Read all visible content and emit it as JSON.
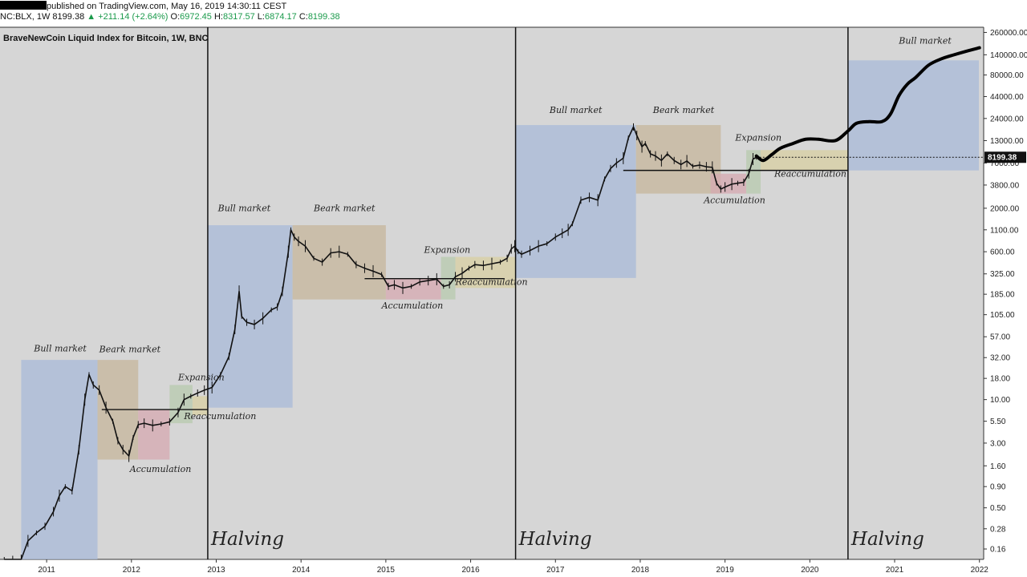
{
  "header": {
    "line1_text": "published on TradingView.com, May 16, 2019 14:30:11 CEST",
    "symbol": "NC:BLX, 1W",
    "price": "8199.38",
    "change": "+211.14 (+2.64%)",
    "open_label": "O:",
    "open": "6972.45",
    "high_label": "H:",
    "high": "8317.57",
    "low_label": "L:",
    "low": "6874.17",
    "close_label": "C:",
    "close": "8199.38"
  },
  "chart_data": {
    "type": "line",
    "title": "BraveNewCoin Liquid Index for Bitcoin, 1W, BNC",
    "y_scale": "log",
    "ylim": [
      0.12,
      300000
    ],
    "xlim": [
      2010.45,
      2022.05
    ],
    "grid": false,
    "y_ticks": [
      "260000.00",
      "140000.00",
      "80000.00",
      "44000.00",
      "24000.00",
      "13000.00",
      "7000.00",
      "3800.00",
      "2000.00",
      "1100.00",
      "600.00",
      "325.00",
      "185.00",
      "105.00",
      "57.00",
      "32.00",
      "18.00",
      "10.00",
      "5.50",
      "3.00",
      "1.60",
      "0.90",
      "0.50",
      "0.28",
      "0.16"
    ],
    "y_tick_values": [
      260000,
      140000,
      80000,
      44000,
      24000,
      13000,
      7000,
      3800,
      2000,
      1100,
      600,
      325,
      185,
      105,
      57,
      32,
      18,
      10,
      5.5,
      3,
      1.6,
      0.9,
      0.5,
      0.28,
      0.16
    ],
    "x_ticks": [
      "2011",
      "2012",
      "2013",
      "2014",
      "2015",
      "2016",
      "2017",
      "2018",
      "2019",
      "2020",
      "2021",
      "2022"
    ],
    "x_tick_values": [
      2011,
      2012,
      2013,
      2014,
      2015,
      2016,
      2017,
      2018,
      2019,
      2020,
      2021,
      2022
    ],
    "current_price_label": "8199.38",
    "current_price": 8199.38,
    "halvings": [
      {
        "x": 2012.9,
        "label": "Halving"
      },
      {
        "x": 2016.53,
        "label": "Halving"
      },
      {
        "x": 2020.45,
        "label": "Halving"
      }
    ],
    "phases": [
      {
        "name": "Bull market",
        "x0": 2010.7,
        "x1": 2011.6,
        "y0": 0.12,
        "y1": 30,
        "color": "#aabbd8",
        "label_x": 2010.85,
        "label_y": 38
      },
      {
        "name": "Bear market",
        "label": "Beark market",
        "x0": 2011.6,
        "x1": 2012.08,
        "y0": 1.9,
        "y1": 30,
        "color": "#c7b79e",
        "label_x": 2011.62,
        "label_y": 37
      },
      {
        "name": "Accumulation",
        "x0": 2012.08,
        "x1": 2012.45,
        "y0": 1.9,
        "y1": 7.6,
        "color": "#d6aab2",
        "label_x": 2011.98,
        "label_y": 1.35
      },
      {
        "name": "Expansion",
        "x0": 2012.45,
        "x1": 2012.72,
        "y0": 5.2,
        "y1": 15,
        "color": "#b9cbb0",
        "label_x": 2012.55,
        "label_y": 17
      },
      {
        "name": "Reaccumulation",
        "x0": 2012.72,
        "x1": 2012.9,
        "y0": 6.5,
        "y1": 11,
        "color": "#d8cfa4",
        "label_x": 2012.62,
        "label_y": 5.8
      },
      {
        "name": "Bull market",
        "x0": 2012.9,
        "x1": 2013.9,
        "y0": 8,
        "y1": 1250,
        "color": "#aabbd8",
        "label_x": 2013.02,
        "label_y": 1850
      },
      {
        "name": "Bear market",
        "label": "Beark market",
        "x0": 2013.9,
        "x1": 2015.0,
        "y0": 160,
        "y1": 1250,
        "color": "#c7b79e",
        "label_x": 2014.15,
        "label_y": 1850
      },
      {
        "name": "Accumulation",
        "x0": 2015.0,
        "x1": 2015.65,
        "y0": 160,
        "y1": 285,
        "color": "#d6aab2",
        "label_x": 2014.95,
        "label_y": 125
      },
      {
        "name": "Expansion",
        "x0": 2015.65,
        "x1": 2015.82,
        "y0": 160,
        "y1": 520,
        "color": "#b9cbb0",
        "label_x": 2015.45,
        "label_y": 580
      },
      {
        "name": "Reaccumulation",
        "x0": 2015.82,
        "x1": 2016.53,
        "y0": 220,
        "y1": 520,
        "color": "#d8cfa4",
        "label_x": 2015.82,
        "label_y": 240
      },
      {
        "name": "Bull market",
        "x0": 2016.53,
        "x1": 2017.95,
        "y0": 290,
        "y1": 20000,
        "color": "#aabbd8",
        "label_x": 2016.93,
        "label_y": 28000
      },
      {
        "name": "Bear market",
        "label": "Beark market",
        "x0": 2017.95,
        "x1": 2018.95,
        "y0": 3000,
        "y1": 20000,
        "color": "#c7b79e",
        "label_x": 2018.15,
        "label_y": 28000
      },
      {
        "name": "Accumulation",
        "x0": 2018.83,
        "x1": 2019.25,
        "y0": 3000,
        "y1": 5200,
        "color": "#d6aab2",
        "label_x": 2018.75,
        "label_y": 2300
      },
      {
        "name": "Expansion",
        "x0": 2019.25,
        "x1": 2019.42,
        "y0": 3000,
        "y1": 10000,
        "color": "#b9cbb0",
        "label_x": 2019.12,
        "label_y": 13000
      },
      {
        "name": "Reaccumulation",
        "x0": 2019.42,
        "x1": 2020.45,
        "y0": 5700,
        "y1": 10000,
        "color": "#d8cfa4",
        "label_x": 2019.58,
        "label_y": 4800
      },
      {
        "name": "Bull market",
        "x0": 2020.45,
        "x1": 2022.05,
        "y0": 5700,
        "y1": 120000,
        "color": "#aabbd8",
        "label_x": 2021.05,
        "label_y": 190000
      }
    ],
    "support_lines": [
      {
        "x0": 2011.65,
        "x1": 2012.9,
        "y": 7.6
      },
      {
        "x0": 2014.75,
        "x1": 2016.4,
        "y": 285
      },
      {
        "x0": 2017.8,
        "x1": 2020.45,
        "y": 5700
      }
    ],
    "series": [
      {
        "style": "price",
        "x": [
          2010.5,
          2010.6,
          2010.7,
          2010.78,
          2010.88,
          2010.98,
          2011.08,
          2011.15,
          2011.22,
          2011.3,
          2011.38,
          2011.45,
          2011.5,
          2011.55,
          2011.62,
          2011.7,
          2011.78,
          2011.84,
          2011.9,
          2011.97,
          2012.02,
          2012.08,
          2012.15,
          2012.25,
          2012.35,
          2012.45,
          2012.55,
          2012.62,
          2012.7,
          2012.78,
          2012.86,
          2012.95,
          2013.05,
          2013.15,
          2013.22,
          2013.27,
          2013.3,
          2013.36,
          2013.45,
          2013.55,
          2013.65,
          2013.72,
          2013.78,
          2013.85,
          2013.88,
          2013.92,
          2013.97,
          2014.05,
          2014.15,
          2014.25,
          2014.35,
          2014.45,
          2014.55,
          2014.65,
          2014.75,
          2014.85,
          2014.95,
          2015.03,
          2015.1,
          2015.2,
          2015.3,
          2015.4,
          2015.5,
          2015.6,
          2015.68,
          2015.75,
          2015.82,
          2015.9,
          2015.98,
          2016.05,
          2016.15,
          2016.25,
          2016.35,
          2016.43,
          2016.48,
          2016.52,
          2016.56,
          2016.6,
          2016.7,
          2016.8,
          2016.9,
          2017.0,
          2017.08,
          2017.15,
          2017.2,
          2017.3,
          2017.4,
          2017.5,
          2017.58,
          2017.65,
          2017.72,
          2017.8,
          2017.86,
          2017.92,
          2017.96,
          2018.02,
          2018.06,
          2018.12,
          2018.18,
          2018.25,
          2018.32,
          2018.4,
          2018.48,
          2018.55,
          2018.62,
          2018.7,
          2018.78,
          2018.85,
          2018.9,
          2018.95,
          2019.0,
          2019.08,
          2019.15,
          2019.22,
          2019.28,
          2019.33,
          2019.37
        ],
        "y": [
          0.08,
          0.08,
          0.1,
          0.2,
          0.25,
          0.3,
          0.45,
          0.7,
          0.9,
          0.8,
          2.5,
          10,
          20,
          15,
          13,
          8,
          5.5,
          3.2,
          2.5,
          2.1,
          3.5,
          5,
          5.2,
          4.9,
          5.1,
          5.4,
          7,
          10,
          11,
          12,
          13,
          14,
          20,
          33,
          70,
          200,
          100,
          85,
          80,
          95,
          120,
          130,
          200,
          600,
          1100,
          900,
          800,
          700,
          500,
          450,
          580,
          600,
          560,
          420,
          380,
          350,
          320,
          230,
          240,
          220,
          230,
          260,
          270,
          280,
          230,
          240,
          300,
          330,
          380,
          420,
          410,
          430,
          450,
          500,
          650,
          700,
          600,
          560,
          620,
          700,
          750,
          900,
          1000,
          1100,
          1300,
          2500,
          2700,
          2500,
          4500,
          6000,
          7000,
          8000,
          14000,
          19000,
          15000,
          11000,
          12000,
          9000,
          8500,
          7500,
          9000,
          7500,
          6700,
          7400,
          6400,
          6600,
          6300,
          6200,
          4000,
          3400,
          3600,
          3900,
          4000,
          4100,
          5200,
          7800,
          8199
        ]
      },
      {
        "style": "projection",
        "x": [
          2019.37,
          2019.45,
          2019.55,
          2019.65,
          2019.8,
          2019.95,
          2020.1,
          2020.3,
          2020.45,
          2020.55,
          2020.7,
          2020.85,
          2020.95,
          2021.05,
          2021.15,
          2021.25,
          2021.4,
          2021.55,
          2021.7,
          2021.85,
          2022.0
        ],
        "y": [
          8500,
          7500,
          8800,
          10500,
          12000,
          13500,
          13500,
          13000,
          17000,
          21000,
          22000,
          22000,
          27000,
          45000,
          62000,
          75000,
          105000,
          125000,
          140000,
          155000,
          170000
        ]
      }
    ]
  }
}
